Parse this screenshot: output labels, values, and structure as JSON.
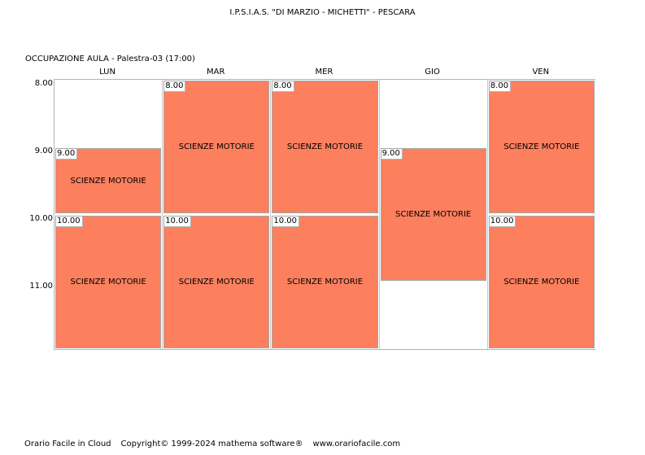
{
  "header": {
    "title": "I.P.S.I.A.S. \"DI MARZIO - MICHETTI\" - PESCARA",
    "subtitle": "OCCUPAZIONE AULA   -   Palestra-03  (17:00)"
  },
  "days": [
    "LUN",
    "MAR",
    "MER",
    "GIO",
    "VEN"
  ],
  "hours": [
    "8.00",
    "9.00",
    "10.00",
    "11.00"
  ],
  "colors": {
    "lesson": "#fc7f5e"
  },
  "lessons": [
    {
      "day": 0,
      "start_hour": 1,
      "duration_hours": 1,
      "time": "9.00",
      "subject": "SCIENZE MOTORIE"
    },
    {
      "day": 0,
      "start_hour": 2,
      "duration_hours": 2,
      "time": "10.00",
      "subject": "SCIENZE MOTORIE"
    },
    {
      "day": 1,
      "start_hour": 0,
      "duration_hours": 2,
      "time": "8.00",
      "subject": "SCIENZE MOTORIE"
    },
    {
      "day": 1,
      "start_hour": 2,
      "duration_hours": 2,
      "time": "10.00",
      "subject": "SCIENZE MOTORIE"
    },
    {
      "day": 2,
      "start_hour": 0,
      "duration_hours": 2,
      "time": "8.00",
      "subject": "SCIENZE MOTORIE"
    },
    {
      "day": 2,
      "start_hour": 2,
      "duration_hours": 2,
      "time": "10.00",
      "subject": "SCIENZE MOTORIE"
    },
    {
      "day": 3,
      "start_hour": 1,
      "duration_hours": 2,
      "time": "9.00",
      "subject": "SCIENZE MOTORIE"
    },
    {
      "day": 4,
      "start_hour": 0,
      "duration_hours": 2,
      "time": "8.00",
      "subject": "SCIENZE MOTORIE"
    },
    {
      "day": 4,
      "start_hour": 2,
      "duration_hours": 2,
      "time": "10.00",
      "subject": "SCIENZE MOTORIE"
    }
  ],
  "footer": {
    "product": "Orario Facile in Cloud",
    "copyright": "Copyright© 1999-2024 mathema software®",
    "website": "www.orariofacile.com"
  }
}
